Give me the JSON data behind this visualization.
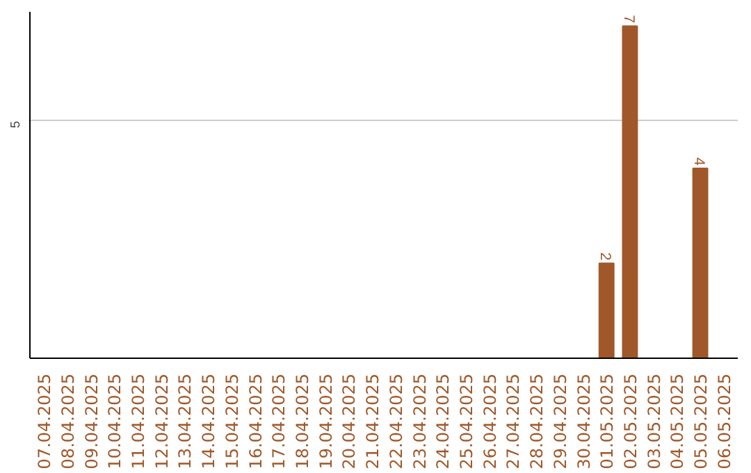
{
  "chart_data": {
    "type": "bar",
    "categories": [
      "07.04.2025",
      "08.04.2025",
      "09.04.2025",
      "10.04.2025",
      "11.04.2025",
      "12.04.2025",
      "13.04.2025",
      "14.04.2025",
      "15.04.2025",
      "16.04.2025",
      "17.04.2025",
      "18.04.2025",
      "19.04.2025",
      "20.04.2025",
      "21.04.2025",
      "22.04.2025",
      "23.04.2025",
      "24.04.2025",
      "25.04.2025",
      "26.04.2025",
      "27.04.2025",
      "28.04.2025",
      "29.04.2025",
      "30.04.2025",
      "01.05.2025",
      "02.05.2025",
      "03.05.2025",
      "04.05.2025",
      "05.05.2025",
      "06.05.2025"
    ],
    "values": [
      null,
      null,
      null,
      null,
      null,
      null,
      null,
      null,
      null,
      null,
      null,
      null,
      null,
      null,
      null,
      null,
      null,
      null,
      null,
      null,
      null,
      null,
      null,
      null,
      2,
      7,
      null,
      null,
      4,
      null
    ],
    "data_labels": true,
    "color": "#a0582a",
    "ylim": [
      0,
      7.3
    ],
    "yticks": [
      5
    ],
    "grid": "y"
  }
}
